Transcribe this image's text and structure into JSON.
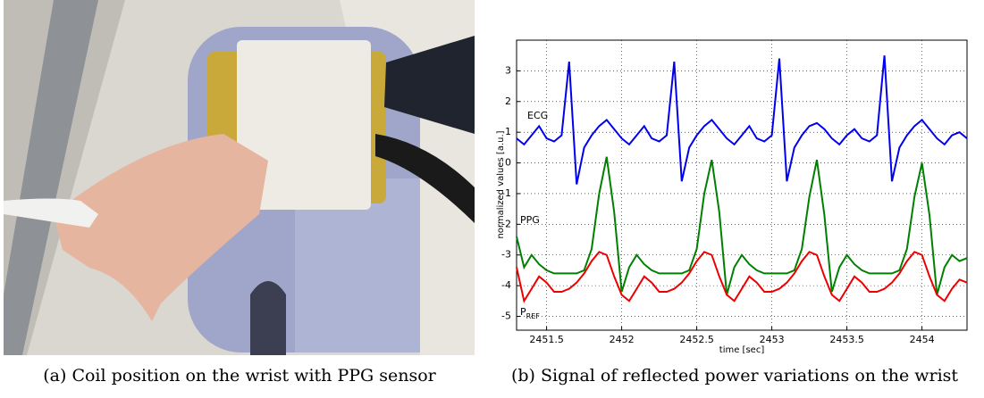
{
  "chart_data": {
    "type": "line",
    "xlabel": "time [sec]",
    "ylabel": "normalized values [a.u.]",
    "x": [
      2451.3,
      2451.35,
      2451.4,
      2451.45,
      2451.5,
      2451.55,
      2451.6,
      2451.65,
      2451.7,
      2451.75,
      2451.8,
      2451.85,
      2451.9,
      2451.95,
      2452.0,
      2452.05,
      2452.1,
      2452.15,
      2452.2,
      2452.25,
      2452.3,
      2452.35,
      2452.4,
      2452.45,
      2452.5,
      2452.55,
      2452.6,
      2452.65,
      2452.7,
      2452.75,
      2452.8,
      2452.85,
      2452.9,
      2452.95,
      2453.0,
      2453.05,
      2453.1,
      2453.15,
      2453.2,
      2453.25,
      2453.3,
      2453.35,
      2453.4,
      2453.45,
      2453.5,
      2453.55,
      2453.6,
      2453.65,
      2453.7,
      2453.75,
      2453.8,
      2453.85,
      2453.9,
      2453.95,
      2454.0,
      2454.05,
      2454.1,
      2454.15,
      2454.2,
      2454.25,
      2454.3
    ],
    "series": [
      {
        "name": "ECG",
        "color": "#0000ee",
        "values": [
          0.8,
          0.6,
          0.9,
          1.2,
          0.8,
          0.7,
          0.9,
          3.3,
          -0.7,
          0.5,
          0.9,
          1.2,
          1.4,
          1.1,
          0.8,
          0.6,
          0.9,
          1.2,
          0.8,
          0.7,
          0.9,
          3.3,
          -0.6,
          0.5,
          0.9,
          1.2,
          1.4,
          1.1,
          0.8,
          0.6,
          0.9,
          1.2,
          0.8,
          0.7,
          0.9,
          3.4,
          -0.6,
          0.5,
          0.9,
          1.2,
          1.3,
          1.1,
          0.8,
          0.6,
          0.9,
          1.1,
          0.8,
          0.7,
          0.9,
          3.5,
          -0.6,
          0.5,
          0.9,
          1.2,
          1.4,
          1.1,
          0.8,
          0.6,
          0.9,
          1.0,
          0.8
        ]
      },
      {
        "name": "PPG",
        "color": "#008000",
        "values": [
          -2.4,
          -3.4,
          -3.0,
          -3.3,
          -3.5,
          -3.6,
          -3.6,
          -3.6,
          -3.6,
          -3.5,
          -2.8,
          -1.0,
          0.2,
          -1.6,
          -4.2,
          -3.4,
          -3.0,
          -3.3,
          -3.5,
          -3.6,
          -3.6,
          -3.6,
          -3.6,
          -3.5,
          -2.8,
          -1.0,
          0.1,
          -1.6,
          -4.3,
          -3.4,
          -3.0,
          -3.3,
          -3.5,
          -3.6,
          -3.6,
          -3.6,
          -3.6,
          -3.5,
          -2.8,
          -1.1,
          0.1,
          -1.7,
          -4.2,
          -3.4,
          -3.0,
          -3.3,
          -3.5,
          -3.6,
          -3.6,
          -3.6,
          -3.6,
          -3.5,
          -2.8,
          -1.1,
          0.0,
          -1.7,
          -4.3,
          -3.4,
          -3.0,
          -3.2,
          -3.1
        ]
      },
      {
        "name": "P",
        "subscript": "REF",
        "color": "#ee0000",
        "values": [
          -3.4,
          -4.5,
          -4.1,
          -3.7,
          -3.9,
          -4.2,
          -4.2,
          -4.1,
          -3.9,
          -3.6,
          -3.2,
          -2.9,
          -3.0,
          -3.7,
          -4.3,
          -4.5,
          -4.1,
          -3.7,
          -3.9,
          -4.2,
          -4.2,
          -4.1,
          -3.9,
          -3.6,
          -3.2,
          -2.9,
          -3.0,
          -3.7,
          -4.3,
          -4.5,
          -4.1,
          -3.7,
          -3.9,
          -4.2,
          -4.2,
          -4.1,
          -3.9,
          -3.6,
          -3.2,
          -2.9,
          -3.0,
          -3.7,
          -4.3,
          -4.5,
          -4.1,
          -3.7,
          -3.9,
          -4.2,
          -4.2,
          -4.1,
          -3.9,
          -3.6,
          -3.2,
          -2.9,
          -3.0,
          -3.7,
          -4.3,
          -4.5,
          -4.1,
          -3.8,
          -3.9
        ]
      }
    ],
    "xlim": [
      2451.3,
      2454.3
    ],
    "ylim": [
      -5.45,
      4.0
    ],
    "xticks": [
      2451.5,
      2452,
      2452.5,
      2453,
      2453.5,
      2454
    ],
    "yticks": [
      -5,
      -4,
      -3,
      -2,
      -1,
      0,
      1,
      2,
      3
    ],
    "grid": true
  },
  "captions": [
    "(a) Coil position on the wrist with PPG sensor",
    "(b) Signal of reflected power variations on the wrist"
  ]
}
